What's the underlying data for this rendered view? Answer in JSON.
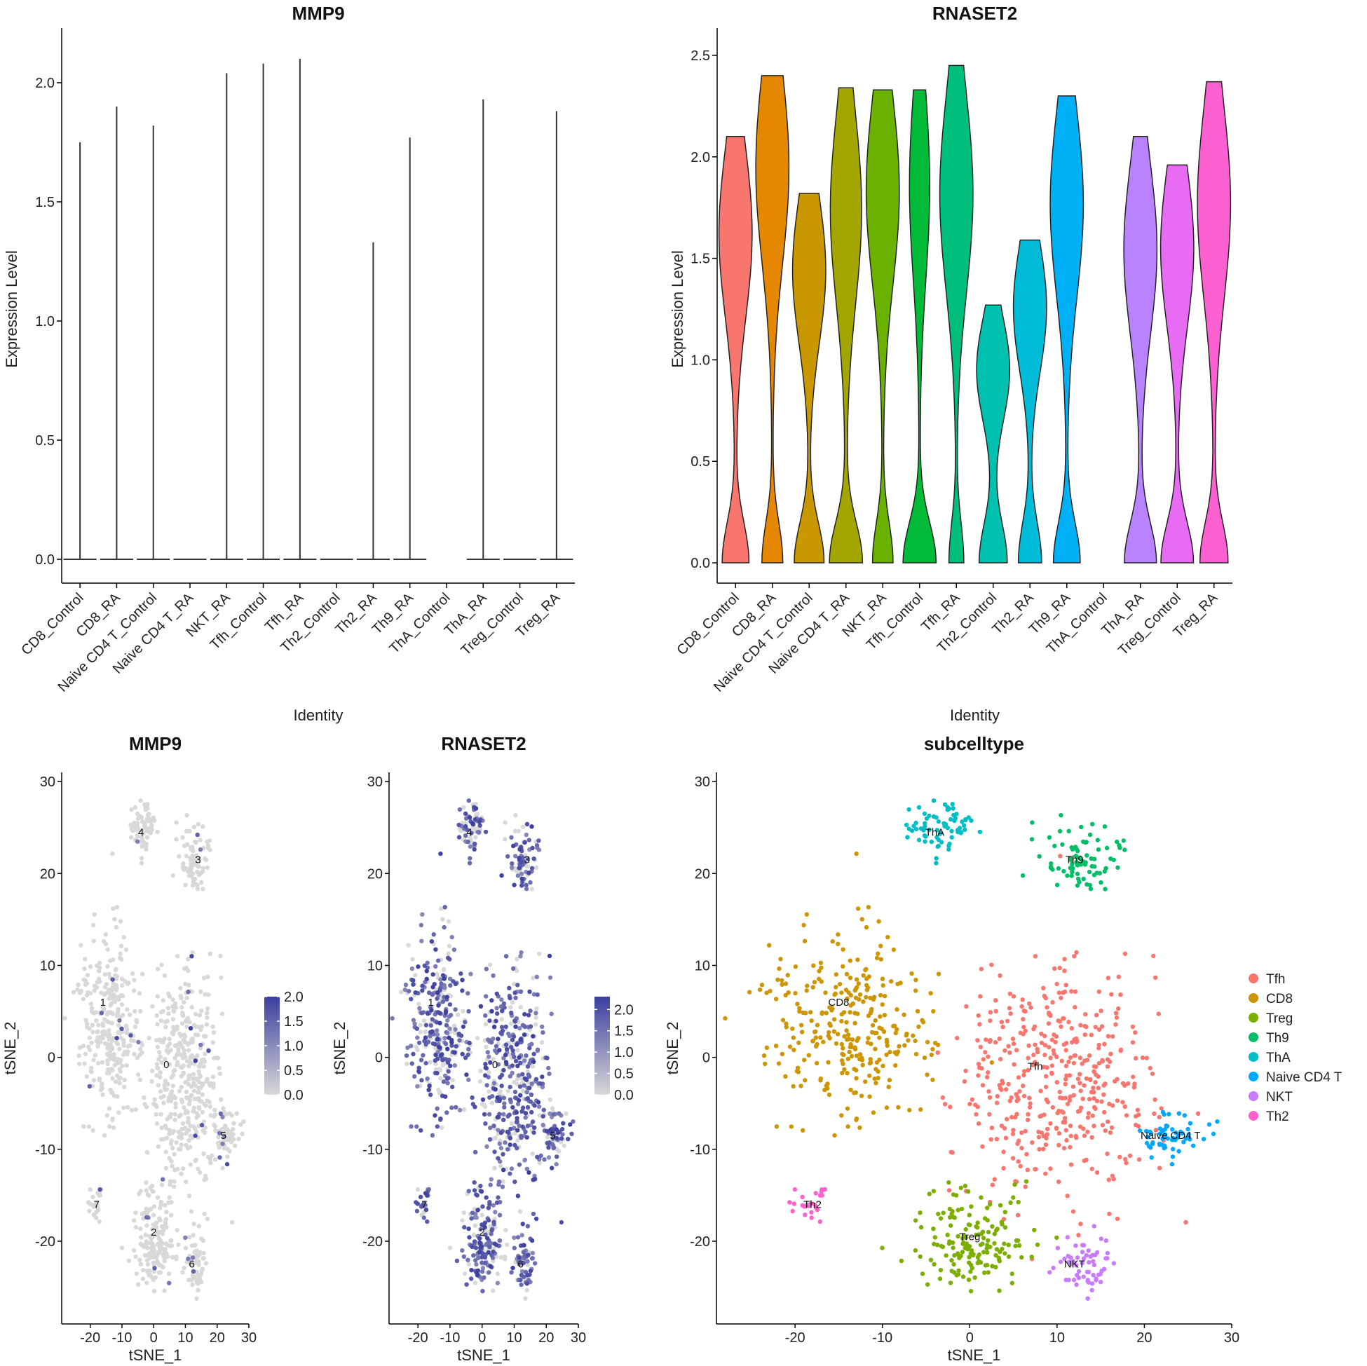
{
  "chart_data": [
    {
      "id": "violin-mmp9",
      "type": "violin",
      "title": "MMP9",
      "xlabel": "Identity",
      "ylabel": "Expression Level",
      "ylim": [
        -0.1,
        2.2
      ],
      "yticks": [
        0.0,
        0.5,
        1.0,
        1.5,
        2.0
      ],
      "ytick_labels": [
        "0.0",
        "0.5",
        "1.0",
        "1.5",
        "2.0"
      ],
      "categories": [
        "CD8_Control",
        "CD8_RA",
        "Naive CD4 T_Control",
        "Naive CD4 T_RA",
        "NKT_RA",
        "Tfh_Control",
        "Tfh_RA",
        "Th2_Control",
        "Th2_RA",
        "Th9_RA",
        "ThA_Control",
        "ThA_RA",
        "Treg_Control",
        "Treg_RA"
      ],
      "max_values": [
        1.75,
        1.9,
        1.82,
        0.0,
        2.04,
        2.08,
        2.1,
        0.0,
        1.33,
        1.77,
        null,
        1.93,
        0.0,
        1.88
      ],
      "color": "#333333"
    },
    {
      "id": "violin-rnaset2",
      "type": "violin",
      "title": "RNASET2",
      "xlabel": "Identity",
      "ylabel": "Expression Level",
      "ylim": [
        -0.1,
        2.6
      ],
      "yticks": [
        0.0,
        0.5,
        1.0,
        1.5,
        2.0,
        2.5
      ],
      "ytick_labels": [
        "0.0",
        "0.5",
        "1.0",
        "1.5",
        "2.0",
        "2.5"
      ],
      "categories": [
        "CD8_Control",
        "CD8_RA",
        "Naive CD4 T_Control",
        "Naive CD4 T_RA",
        "NKT_RA",
        "Tfh_Control",
        "Tfh_RA",
        "Th2_Control",
        "Th2_RA",
        "Th9_RA",
        "ThA_Control",
        "ThA_RA",
        "Treg_Control",
        "Treg_RA"
      ],
      "max_values": [
        2.1,
        2.4,
        1.82,
        2.34,
        2.33,
        2.33,
        2.45,
        1.27,
        1.59,
        2.3,
        null,
        2.1,
        1.96,
        2.37
      ],
      "colors": [
        "#F8766D",
        "#E58700",
        "#C99800",
        "#A3A500",
        "#6BB100",
        "#00BA38",
        "#00BF7D",
        "#00C0AF",
        "#00BCD8",
        "#00B0F6",
        "#619CFF",
        "#B983FF",
        "#E76BF3",
        "#FD61D1"
      ]
    },
    {
      "id": "tsne-mmp9",
      "type": "scatter",
      "title": "MMP9",
      "xlabel": "tSNE_1",
      "ylabel": "tSNE_2",
      "xlim": [
        -29,
        30
      ],
      "ylim": [
        -29,
        31
      ],
      "xticks": [
        -20,
        -10,
        0,
        10,
        20,
        30
      ],
      "xtick_labels": [
        "-20",
        "-10",
        "0",
        "10",
        "20",
        "30"
      ],
      "yticks": [
        -20,
        -10,
        0,
        10,
        20,
        30
      ],
      "ytick_labels": [
        "-20",
        "-10",
        "0",
        "10",
        "20",
        "30"
      ],
      "cluster_labels": [
        {
          "label": "0",
          "x": 4,
          "y": -0.8
        },
        {
          "label": "1",
          "x": -16,
          "y": 6
        },
        {
          "label": "2",
          "x": 0,
          "y": -19
        },
        {
          "label": "3",
          "x": 14,
          "y": 21.5
        },
        {
          "label": "4",
          "x": -4,
          "y": 24.5
        },
        {
          "label": "5",
          "x": 22,
          "y": -8.5
        },
        {
          "label": "6",
          "x": 12,
          "y": -22.5
        },
        {
          "label": "7",
          "x": -18,
          "y": -16
        }
      ],
      "colorbar": {
        "min": 0.0,
        "max": 2.0,
        "ticks": [
          0.0,
          0.5,
          1.0,
          1.5,
          2.0
        ],
        "tick_labels": [
          "0.0",
          "0.5",
          "1.0",
          "1.5",
          "2.0"
        ],
        "low": "#d8d8d8",
        "high": "#3b3e9e"
      },
      "expressing_fraction": 0.04
    },
    {
      "id": "tsne-rnaset2",
      "type": "scatter",
      "title": "RNASET2",
      "xlabel": "tSNE_1",
      "ylabel": "tSNE_2",
      "xlim": [
        -29,
        30
      ],
      "ylim": [
        -29,
        31
      ],
      "xticks": [
        -20,
        -10,
        0,
        10,
        20,
        30
      ],
      "xtick_labels": [
        "-20",
        "-10",
        "0",
        "10",
        "20",
        "30"
      ],
      "yticks": [
        -20,
        -10,
        0,
        10,
        20,
        30
      ],
      "ytick_labels": [
        "-20",
        "-10",
        "0",
        "10",
        "20",
        "30"
      ],
      "cluster_labels": [
        {
          "label": "0",
          "x": 4,
          "y": -0.8
        },
        {
          "label": "1",
          "x": -16,
          "y": 6
        },
        {
          "label": "2",
          "x": 0,
          "y": -19
        },
        {
          "label": "3",
          "x": 14,
          "y": 21.5
        },
        {
          "label": "4",
          "x": -4,
          "y": 24.5
        },
        {
          "label": "5",
          "x": 22,
          "y": -8.5
        },
        {
          "label": "6",
          "x": 12,
          "y": -22.5
        },
        {
          "label": "7",
          "x": -18,
          "y": -16
        }
      ],
      "colorbar": {
        "min": 0.0,
        "max": 2.3,
        "ticks": [
          0.0,
          0.5,
          1.0,
          1.5,
          2.0
        ],
        "tick_labels": [
          "0.0",
          "0.5",
          "1.0",
          "1.5",
          "2.0"
        ],
        "low": "#d8d8d8",
        "high": "#3b3e9e"
      },
      "expressing_fraction": 0.7
    },
    {
      "id": "tsne-subcell",
      "type": "scatter",
      "title": "subcelltype",
      "xlabel": "tSNE_1",
      "ylabel": "tSNE_2",
      "xlim": [
        -29,
        30
      ],
      "ylim": [
        -29,
        31
      ],
      "xticks": [
        -20,
        -10,
        0,
        10,
        20,
        30
      ],
      "xtick_labels": [
        "-20",
        "-10",
        "0",
        "10",
        "20",
        "30"
      ],
      "yticks": [
        -20,
        -10,
        0,
        10,
        20,
        30
      ],
      "ytick_labels": [
        "-20",
        "-10",
        "0",
        "10",
        "20",
        "30"
      ],
      "legend_position": "right",
      "series": [
        {
          "name": "Tfh",
          "color": "#F8766D",
          "label_x": 7.5,
          "label_y": -1
        },
        {
          "name": "CD8",
          "color": "#CD9600",
          "label_x": -15,
          "label_y": 6
        },
        {
          "name": "Treg",
          "color": "#7CAE00",
          "label_x": 0,
          "label_y": -19.5
        },
        {
          "name": "Th9",
          "color": "#00BE67",
          "label_x": 12,
          "label_y": 21.5
        },
        {
          "name": "ThA",
          "color": "#00BFC4",
          "label_x": -4,
          "label_y": 24.5
        },
        {
          "name": "Naive CD4 T",
          "color": "#00A9FF",
          "label_x": 23,
          "label_y": -8.5
        },
        {
          "name": "NKT",
          "color": "#C77CFF",
          "label_x": 12,
          "label_y": -22.5
        },
        {
          "name": "Th2",
          "color": "#FF61CC",
          "label_x": -18,
          "label_y": -16
        }
      ]
    }
  ]
}
